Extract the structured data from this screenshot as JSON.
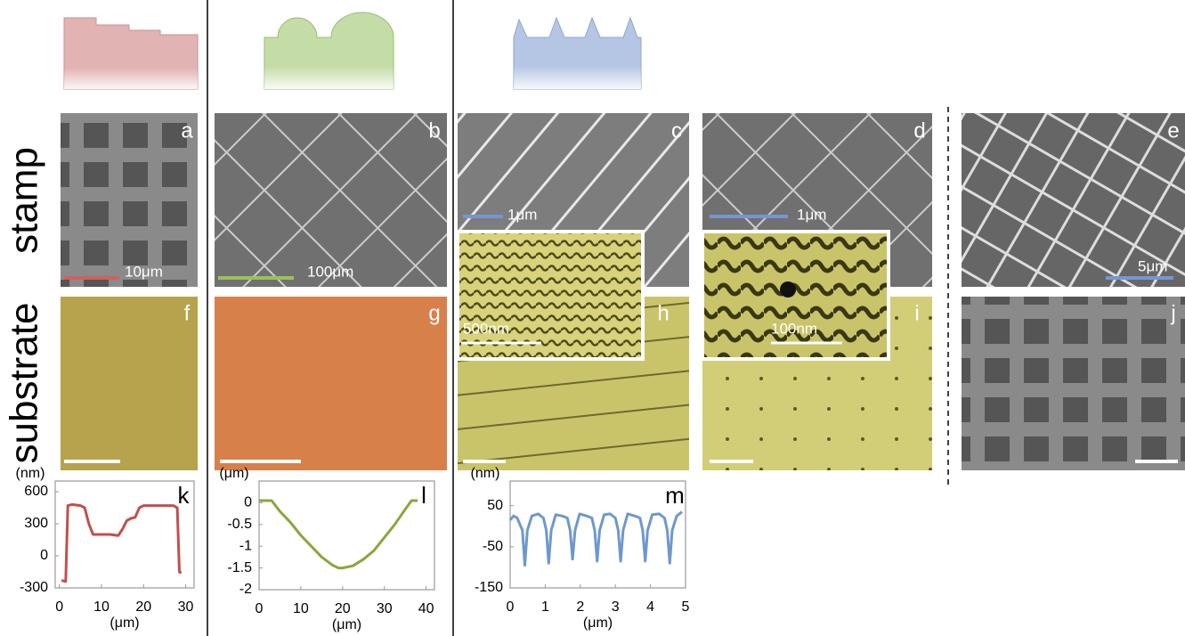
{
  "row_labels": [
    "stamp",
    "substrate"
  ],
  "panels": [
    {
      "letter": "a",
      "scale_bar": "10μm"
    },
    {
      "letter": "b",
      "scale_bar": "100μm"
    },
    {
      "letter": "c",
      "scale_bar": "1μm"
    },
    {
      "letter": "d",
      "scale_bar": "1μm"
    },
    {
      "letter": "e",
      "scale_bar": "5μm"
    },
    {
      "letter": "f"
    },
    {
      "letter": "g"
    },
    {
      "letter": "h"
    },
    {
      "letter": "i"
    },
    {
      "letter": "j"
    }
  ],
  "insets": [
    {
      "scale_bar": "500nm"
    },
    {
      "scale_bar": "100nm"
    }
  ],
  "chart_data": [
    {
      "type": "line",
      "label": "k",
      "y_label": "(nm)",
      "x_label": "(μm)",
      "x": [
        0.5,
        1.5,
        2,
        3,
        5,
        6,
        7,
        8,
        10,
        12,
        14,
        15,
        16,
        17,
        18,
        19,
        20,
        22,
        25,
        27,
        28,
        28.5,
        29
      ],
      "series": [
        {
          "color": "#c0504d",
          "values": [
            -230,
            -240,
            470,
            480,
            470,
            450,
            300,
            200,
            200,
            200,
            190,
            250,
            330,
            350,
            360,
            450,
            470,
            470,
            470,
            470,
            450,
            -150,
            -160
          ]
        }
      ],
      "xlim": [
        -1,
        32
      ],
      "ylim": [
        -300,
        700
      ],
      "xticks": [
        0,
        10,
        20,
        30
      ],
      "yticks": [
        -300,
        0,
        300,
        600
      ]
    },
    {
      "type": "line",
      "label": "l",
      "y_label": "(μm)",
      "x_label": "(μm)",
      "x": [
        0,
        3,
        5,
        7.5,
        10,
        12.5,
        15,
        17.5,
        19,
        20,
        22.5,
        25,
        27.5,
        30,
        32.5,
        35,
        36.5,
        38
      ],
      "series": [
        {
          "color": "#8aa63c",
          "values": [
            0.05,
            0.05,
            -0.2,
            -0.45,
            -0.75,
            -1.0,
            -1.25,
            -1.43,
            -1.5,
            -1.5,
            -1.45,
            -1.3,
            -1.1,
            -0.8,
            -0.5,
            -0.15,
            0.05,
            0.05
          ]
        }
      ],
      "xlim": [
        0,
        42
      ],
      "ylim": [
        -2,
        0.5
      ],
      "xticks": [
        0,
        10,
        20,
        30,
        40
      ],
      "yticks": [
        0,
        -0.5,
        -1,
        -1.5,
        -2
      ]
    },
    {
      "type": "line",
      "label": "m",
      "y_label": "(nm)",
      "x_label": "(μm)",
      "x": [
        0,
        0.1,
        0.2,
        0.35,
        0.42,
        0.49,
        0.62,
        0.8,
        0.95,
        1.03,
        1.1,
        1.17,
        1.3,
        1.48,
        1.63,
        1.71,
        1.78,
        1.85,
        1.98,
        2.18,
        2.33,
        2.41,
        2.48,
        2.55,
        2.68,
        2.85,
        3.0,
        3.08,
        3.15,
        3.22,
        3.35,
        3.55,
        3.7,
        3.78,
        3.85,
        3.92,
        4.05,
        4.25,
        4.4,
        4.48,
        4.55,
        4.62,
        4.75,
        4.9
      ],
      "series": [
        {
          "color": "#6e98cc",
          "values": [
            15,
            25,
            20,
            -10,
            -95,
            -10,
            25,
            30,
            20,
            -10,
            -90,
            -10,
            28,
            25,
            20,
            -10,
            -80,
            -10,
            30,
            25,
            20,
            -10,
            -85,
            -10,
            28,
            30,
            20,
            -10,
            -85,
            -10,
            30,
            25,
            20,
            -10,
            -85,
            -10,
            28,
            30,
            20,
            -10,
            -90,
            -10,
            25,
            35
          ]
        }
      ],
      "xlim": [
        0,
        5
      ],
      "ylim": [
        -150,
        110
      ],
      "xticks": [
        0,
        1,
        2,
        3,
        4,
        5
      ],
      "yticks": [
        50,
        -50,
        -150
      ]
    }
  ]
}
